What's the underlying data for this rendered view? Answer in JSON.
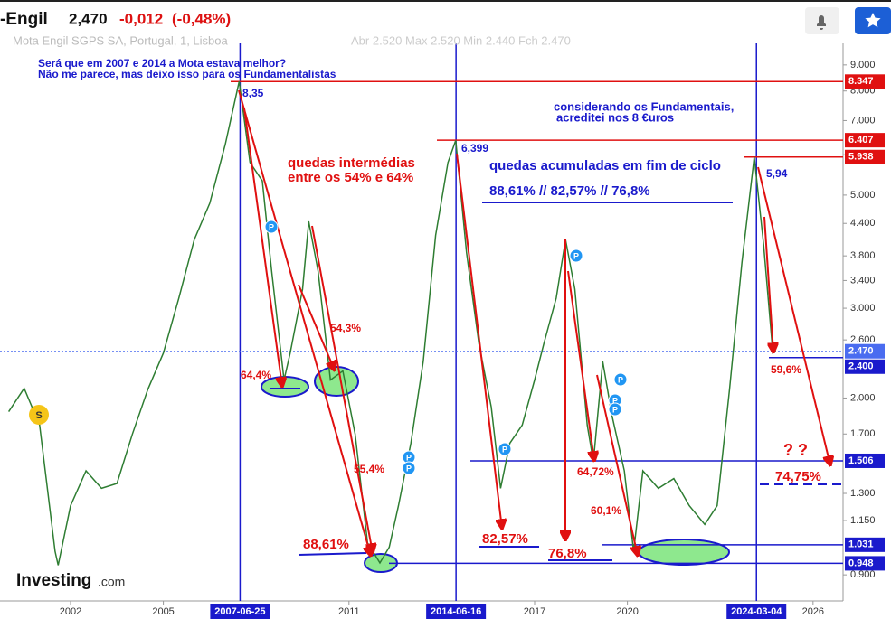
{
  "header": {
    "name": "-Engil",
    "price": "2,470",
    "change": "-0,012",
    "change_pct": "(-0,48%)",
    "subtitle": "Mota Engil SGPS SA, Portugal, 1, Lisboa",
    "ohlc": "Abr 2.520  Max 2.520  Min 2.440  Fch 2.470"
  },
  "chart_data": {
    "type": "line",
    "log_scale": true,
    "grid": false,
    "series": [
      {
        "color": "#2e7d32",
        "x": [
          2000.0,
          2000.5,
          2001.0,
          2001.5,
          2001.6,
          2002.0,
          2002.5,
          2003.0,
          2003.5,
          2004.0,
          2004.5,
          2005.0,
          2005.5,
          2006.0,
          2006.5,
          2007.0,
          2007.45,
          2007.8,
          2008.2,
          2008.5,
          2008.9,
          2009.1,
          2009.5,
          2009.7,
          2010.0,
          2010.4,
          2010.8,
          2011.2,
          2011.6,
          2012.0,
          2012.3,
          2012.6,
          2013.0,
          2013.4,
          2013.8,
          2014.2,
          2014.45,
          2014.8,
          2015.2,
          2015.6,
          2015.9,
          2016.2,
          2016.6,
          2017.0,
          2017.3,
          2017.7,
          2018.0,
          2018.3,
          2018.7,
          2018.9,
          2019.2,
          2019.5,
          2019.9,
          2020.2,
          2020.5,
          2021.0,
          2021.5,
          2022.0,
          2022.5,
          2022.9,
          2023.3,
          2023.7,
          2024.1,
          2024.4,
          2024.7,
          2024.8
        ],
        "values": [
          1.88,
          2.09,
          1.77,
          1.0,
          0.94,
          1.23,
          1.44,
          1.33,
          1.36,
          1.7,
          2.08,
          2.45,
          3.14,
          4.09,
          4.82,
          6.28,
          8.35,
          5.79,
          5.33,
          3.55,
          2.17,
          2.45,
          3.27,
          4.44,
          3.55,
          2.17,
          2.26,
          1.7,
          1.04,
          0.95,
          1.02,
          1.23,
          1.63,
          2.36,
          4.17,
          5.79,
          6.399,
          3.85,
          2.56,
          1.92,
          1.33,
          1.63,
          1.77,
          2.17,
          2.56,
          3.14,
          4.09,
          3.27,
          1.77,
          1.5,
          2.36,
          1.85,
          1.44,
          1.0,
          1.44,
          1.33,
          1.39,
          1.23,
          1.13,
          1.23,
          2.08,
          3.69,
          5.94,
          4.01,
          2.45,
          2.47
        ]
      }
    ],
    "xlim": [
      1999.72,
      2026.97
    ],
    "xticks": [
      2002,
      2005,
      2011,
      2017,
      2020,
      2026
    ],
    "ylim": [
      0.8,
      9.92
    ],
    "yticks": [
      {
        "value": 0.9,
        "label": "0.900"
      },
      {
        "value": 1.15,
        "label": "1.150"
      },
      {
        "value": 1.3,
        "label": "1.300"
      },
      {
        "value": 1.7,
        "label": "1.700"
      },
      {
        "value": 2,
        "label": "2.000"
      },
      {
        "value": 2.6,
        "label": "2.600"
      },
      {
        "value": 3,
        "label": "3.000"
      },
      {
        "value": 3.4,
        "label": "3.400"
      },
      {
        "value": 3.8,
        "label": "3.800"
      },
      {
        "value": 4.4,
        "label": "4.400"
      },
      {
        "value": 5,
        "label": "5.000"
      },
      {
        "value": 6,
        "label": "6.000"
      },
      {
        "value": 7,
        "label": "7.000"
      },
      {
        "value": 8,
        "label": "8.000"
      },
      {
        "value": 9,
        "label": "9.000"
      }
    ],
    "levels": [
      {
        "value": 8.347,
        "label": "8.347",
        "color": "#e01010"
      },
      {
        "value": 6.407,
        "label": "6.407",
        "color": "#e01010"
      },
      {
        "value": 5.938,
        "label": "5.938",
        "color": "#e01010"
      },
      {
        "value": 2.47,
        "label": "2.470",
        "color": "#4a6cf0"
      },
      {
        "value": 2.4,
        "label": "2.400",
        "color": "#1a1acc"
      },
      {
        "value": 1.506,
        "label": "1.506",
        "color": "#1a1acc"
      },
      {
        "value": 1.031,
        "label": "1.031",
        "color": "#1a1acc"
      },
      {
        "value": 0.948,
        "label": "0.948",
        "color": "#1a1acc"
      }
    ],
    "vlines": [
      {
        "x": 2007.48,
        "label": "2007-06-25"
      },
      {
        "x": 2014.46,
        "label": "2014-06-16"
      },
      {
        "x": 2024.17,
        "label": "2024-03-04"
      }
    ],
    "annotations": [
      "Será que em 2007 e 2014 a Mota estava melhor?",
      "Não me parece, mas deixo isso para os Fundamentalistas",
      "8,35",
      "quedas intermédias",
      "entre os 54% e 64%",
      "6,399",
      "considerando os Fundamentais,",
      "acreditei nos 8 €uros",
      "quedas acumuladas em fim de ciclo",
      "88,61%  //  82,57%  //  76,8%",
      "5,94",
      "54,3%",
      "64,4%",
      "55,4%",
      "88,61%",
      "82,57%",
      "76,8%",
      "64,72%",
      "60,1%",
      "59,6%",
      "? ?",
      "74,75%"
    ],
    "marker_p": "P",
    "marker_s": "S",
    "logo": "Investing",
    "logo_suffix": ".com"
  }
}
